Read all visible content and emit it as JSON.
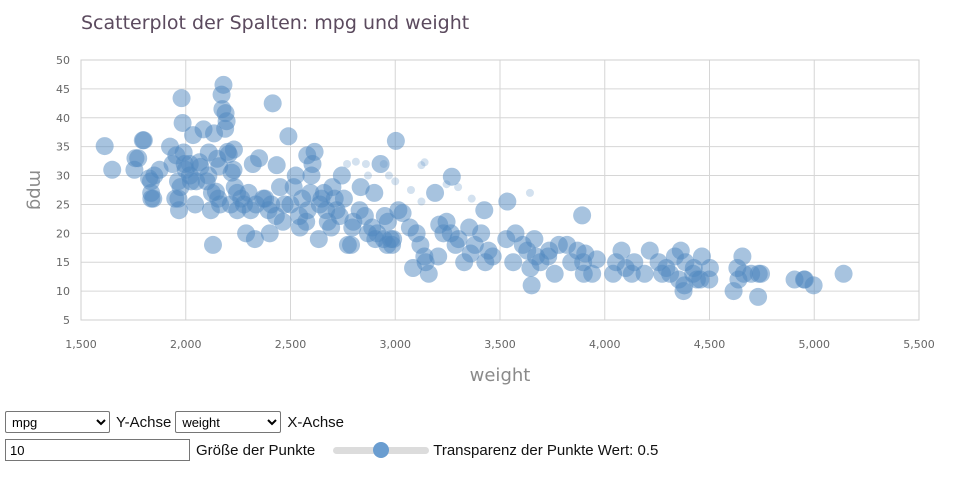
{
  "chart_data": {
    "type": "scatter",
    "title": "Scatterplot der Spalten: mpg und weight",
    "xlabel": "weight",
    "ylabel": "mpg",
    "xlim": [
      1500,
      5500
    ],
    "ylim": [
      5,
      50
    ],
    "x_ticks": [
      "1,500",
      "2,000",
      "2,500",
      "3,000",
      "3,500",
      "4,000",
      "4,500",
      "5,000",
      "5,500"
    ],
    "y_ticks": [
      "5",
      "10",
      "15",
      "20",
      "25",
      "30",
      "35",
      "40",
      "45",
      "50"
    ],
    "grid": true,
    "point_color": "#4f87c0",
    "point_opacity": 0.5,
    "points": [
      [
        1613,
        35.1
      ],
      [
        1649,
        31.0
      ],
      [
        1755,
        31.0
      ],
      [
        1760,
        33.0
      ],
      [
        1773,
        33.0
      ],
      [
        1795,
        36.1
      ],
      [
        1800,
        36.1
      ],
      [
        1825,
        29.5
      ],
      [
        1834,
        29.0
      ],
      [
        1835,
        27.0
      ],
      [
        1836,
        26.0
      ],
      [
        1845,
        26.0
      ],
      [
        1850,
        30.0
      ],
      [
        1875,
        31.0
      ],
      [
        1925,
        35.0
      ],
      [
        1937,
        32.0
      ],
      [
        1950,
        26.0
      ],
      [
        1955,
        33.5
      ],
      [
        1963,
        29.0
      ],
      [
        1965,
        26.0
      ],
      [
        1968,
        24.0
      ],
      [
        1975,
        28.0
      ],
      [
        1980,
        43.4
      ],
      [
        1985,
        39.1
      ],
      [
        1990,
        34.0
      ],
      [
        1995,
        32.0
      ],
      [
        2000,
        31.0
      ],
      [
        2019,
        32.0
      ],
      [
        2020,
        30.0
      ],
      [
        2025,
        29.0
      ],
      [
        2035,
        37.0
      ],
      [
        2045,
        25.0
      ],
      [
        2050,
        29.0
      ],
      [
        2065,
        32.3
      ],
      [
        2070,
        31.5
      ],
      [
        2085,
        38.0
      ],
      [
        2100,
        29.0
      ],
      [
        2108,
        30.0
      ],
      [
        2110,
        34.0
      ],
      [
        2120,
        24.0
      ],
      [
        2125,
        27.0
      ],
      [
        2130,
        18.0
      ],
      [
        2135,
        37.3
      ],
      [
        2144,
        27.2
      ],
      [
        2150,
        32.9
      ],
      [
        2155,
        26.0
      ],
      [
        2160,
        31.6
      ],
      [
        2164,
        25.0
      ],
      [
        2171,
        44.0
      ],
      [
        2175,
        41.5
      ],
      [
        2180,
        45.7
      ],
      [
        2188,
        38.1
      ],
      [
        2190,
        40.8
      ],
      [
        2195,
        39.4
      ],
      [
        2200,
        34.1
      ],
      [
        2205,
        33.7
      ],
      [
        2215,
        25.0
      ],
      [
        2219,
        30.5
      ],
      [
        2228,
        31.0
      ],
      [
        2230,
        34.5
      ],
      [
        2234,
        28.0
      ],
      [
        2245,
        27.0
      ],
      [
        2246,
        24.0
      ],
      [
        2265,
        26.0
      ],
      [
        2278,
        25.0
      ],
      [
        2288,
        20.0
      ],
      [
        2300,
        27.0
      ],
      [
        2310,
        24.0
      ],
      [
        2320,
        32.0
      ],
      [
        2330,
        19.0
      ],
      [
        2335,
        25.0
      ],
      [
        2350,
        33.0
      ],
      [
        2370,
        26.0
      ],
      [
        2379,
        26.0
      ],
      [
        2395,
        24.0
      ],
      [
        2401,
        20.0
      ],
      [
        2408,
        25.0
      ],
      [
        2415,
        42.5
      ],
      [
        2430,
        23.0
      ],
      [
        2434,
        31.8
      ],
      [
        2450,
        28.0
      ],
      [
        2464,
        22.0
      ],
      [
        2472,
        25.0
      ],
      [
        2490,
        36.8
      ],
      [
        2500,
        25.0
      ],
      [
        2515,
        28.0
      ],
      [
        2525,
        30.0
      ],
      [
        2542,
        23.0
      ],
      [
        2545,
        21.0
      ],
      [
        2556,
        26.0
      ],
      [
        2575,
        22.0
      ],
      [
        2580,
        33.5
      ],
      [
        2582,
        24.0
      ],
      [
        2595,
        27.0
      ],
      [
        2600,
        30.0
      ],
      [
        2605,
        32.0
      ],
      [
        2615,
        34.1
      ],
      [
        2635,
        19.0
      ],
      [
        2640,
        25.0
      ],
      [
        2648,
        26.0
      ],
      [
        2660,
        27.0
      ],
      [
        2670,
        24.0
      ],
      [
        2678,
        22.0
      ],
      [
        2694,
        21.0
      ],
      [
        2700,
        28.0
      ],
      [
        2711,
        26.0
      ],
      [
        2720,
        24.0
      ],
      [
        2735,
        23.0
      ],
      [
        2745,
        30.0
      ],
      [
        2755,
        26.0
      ],
      [
        2774,
        18.0
      ],
      [
        2789,
        18.0
      ],
      [
        2795,
        21.0
      ],
      [
        2800,
        22.0
      ],
      [
        2830,
        24.0
      ],
      [
        2835,
        28.0
      ],
      [
        2855,
        23.0
      ],
      [
        2870,
        20.0
      ],
      [
        2890,
        21.0
      ],
      [
        2900,
        27.0
      ],
      [
        2905,
        19.0
      ],
      [
        2914,
        20.0
      ],
      [
        2930,
        32.0
      ],
      [
        2945,
        19.0
      ],
      [
        2950,
        23.0
      ],
      [
        2962,
        18.0
      ],
      [
        2965,
        22.0
      ],
      [
        2979,
        19.0
      ],
      [
        2985,
        18.0
      ],
      [
        2990,
        19.0
      ],
      [
        3003,
        36.0
      ],
      [
        3015,
        24.0
      ],
      [
        3035,
        23.5
      ],
      [
        3070,
        21.0
      ],
      [
        3085,
        14.0
      ],
      [
        3102,
        20.0
      ],
      [
        3120,
        18.0
      ],
      [
        3139,
        16.0
      ],
      [
        3145,
        15.0
      ],
      [
        3160,
        13.0
      ],
      [
        3190,
        27.0
      ],
      [
        3205,
        16.0
      ],
      [
        3210,
        21.5
      ],
      [
        3230,
        20.0
      ],
      [
        3245,
        22.0
      ],
      [
        3265,
        20.0
      ],
      [
        3270,
        29.8
      ],
      [
        3288,
        18.0
      ],
      [
        3302,
        19.0
      ],
      [
        3329,
        15.0
      ],
      [
        3353,
        21.0
      ],
      [
        3360,
        16.5
      ],
      [
        3380,
        18.0
      ],
      [
        3410,
        20.0
      ],
      [
        3425,
        24.0
      ],
      [
        3430,
        15.0
      ],
      [
        3445,
        17.0
      ],
      [
        3465,
        16.0
      ],
      [
        3535,
        25.5
      ],
      [
        3530,
        19.0
      ],
      [
        3563,
        15.0
      ],
      [
        3574,
        20.0
      ],
      [
        3609,
        18.0
      ],
      [
        3630,
        17.0
      ],
      [
        3645,
        14.0
      ],
      [
        3651,
        11.0
      ],
      [
        3664,
        19.0
      ],
      [
        3672,
        16.0
      ],
      [
        3693,
        15.0
      ],
      [
        3730,
        16.0
      ],
      [
        3735,
        17.0
      ],
      [
        3761,
        13.0
      ],
      [
        3781,
        18.0
      ],
      [
        3820,
        18.0
      ],
      [
        3840,
        15.0
      ],
      [
        3870,
        17.0
      ],
      [
        3892,
        23.1
      ],
      [
        3897,
        15.0
      ],
      [
        3900,
        13.0
      ],
      [
        3907,
        16.5
      ],
      [
        3940,
        13.0
      ],
      [
        3962,
        15.5
      ],
      [
        4040,
        13.0
      ],
      [
        4054,
        15.0
      ],
      [
        4080,
        17.0
      ],
      [
        4100,
        14.0
      ],
      [
        4129,
        13.0
      ],
      [
        4141,
        15.0
      ],
      [
        4190,
        13.0
      ],
      [
        4215,
        17.0
      ],
      [
        4257,
        15.0
      ],
      [
        4274,
        13.0
      ],
      [
        4294,
        14.0
      ],
      [
        4312,
        13.0
      ],
      [
        4335,
        16.0
      ],
      [
        4354,
        12.0
      ],
      [
        4363,
        17.0
      ],
      [
        4376,
        10.0
      ],
      [
        4380,
        11.0
      ],
      [
        4385,
        15.0
      ],
      [
        4422,
        13.0
      ],
      [
        4425,
        14.0
      ],
      [
        4440,
        12.0
      ],
      [
        4456,
        12.0
      ],
      [
        4464,
        16.0
      ],
      [
        4499,
        12.0
      ],
      [
        4502,
        14.0
      ],
      [
        4615,
        10.0
      ],
      [
        4633,
        14.0
      ],
      [
        4638,
        12.0
      ],
      [
        4657,
        16.0
      ],
      [
        4664,
        13.0
      ],
      [
        4699,
        13.0
      ],
      [
        4732,
        9.0
      ],
      [
        4735,
        13.0
      ],
      [
        4746,
        13.0
      ],
      [
        4906,
        12.0
      ],
      [
        4951,
        12.0
      ],
      [
        4955,
        12.0
      ],
      [
        4997,
        11.0
      ],
      [
        5140,
        13.0
      ]
    ],
    "faded_points": [
      [
        2770,
        32.0
      ],
      [
        2812,
        32.4
      ],
      [
        2860,
        32.0
      ],
      [
        2870,
        30.0
      ],
      [
        2945,
        32.0
      ],
      [
        2970,
        30.0
      ],
      [
        3000,
        29.0
      ],
      [
        3075,
        27.5
      ],
      [
        3125,
        25.5
      ],
      [
        3140,
        32.3
      ],
      [
        3245,
        28.5
      ],
      [
        3300,
        28.0
      ],
      [
        3365,
        26.0
      ],
      [
        3643,
        27.0
      ],
      [
        3125,
        31.8
      ]
    ]
  },
  "controls": {
    "y_select_value": "mpg",
    "y_axis_label": "Y-Achse",
    "x_select_value": "weight",
    "x_axis_label": "X-Achse",
    "point_size_value": "10",
    "point_size_label": "Größe der Punkte",
    "transparency_label": "Transparenz der Punkte Wert: 0.5",
    "transparency_value": 0.5
  }
}
